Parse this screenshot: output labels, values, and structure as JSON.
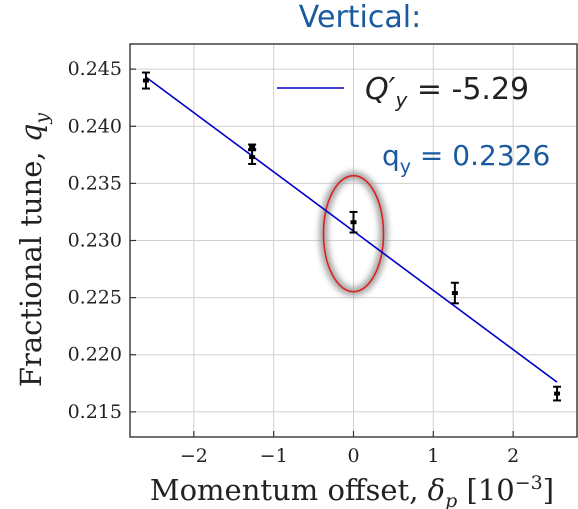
{
  "chart_data": {
    "type": "scatter",
    "title": "Vertical:",
    "xlabel_main": "Momentum offset, ",
    "xlabel_symbol": "δ",
    "xlabel_symbol_sub": "p",
    "xlabel_unit_open": " [10",
    "xlabel_unit_exp": "−3",
    "xlabel_unit_close": "]",
    "ylabel_main": "Fractional tune, ",
    "ylabel_symbol": "q",
    "ylabel_symbol_sub": "y",
    "xlim": [
      -2.8,
      2.8
    ],
    "ylim": [
      0.2128,
      0.2472
    ],
    "xticks": [
      -2,
      -1,
      0,
      1,
      2
    ],
    "xtick_labels": [
      "−2",
      "−1",
      "0",
      "1",
      "2"
    ],
    "yticks": [
      0.215,
      0.22,
      0.225,
      0.23,
      0.235,
      0.24,
      0.245
    ],
    "ytick_labels": [
      "0.215",
      "0.220",
      "0.225",
      "0.230",
      "0.235",
      "0.240",
      "0.245"
    ],
    "grid": true,
    "legend_position": "top-right",
    "series": [
      {
        "name": "Q′y = -5.29",
        "legend_main": "Q′",
        "legend_sub": "y",
        "legend_value": " =  -5.29",
        "kind": "line",
        "color": "#0000cc",
        "x": [
          -2.6,
          2.55
        ],
        "y": [
          0.2443,
          0.2176
        ]
      },
      {
        "kind": "errorbar",
        "color": "#000000",
        "points": [
          {
            "x": -2.6,
            "y": 0.244,
            "yerr": 0.0007
          },
          {
            "x": -1.27,
            "y": 0.2382,
            "yerr": 0.0002
          },
          {
            "x": -1.27,
            "y": 0.2373,
            "yerr": 0.0006
          },
          {
            "x": 0.0,
            "y": 0.2316,
            "yerr": 0.0009
          },
          {
            "x": 1.27,
            "y": 0.2254,
            "yerr": 0.0009
          },
          {
            "x": 2.55,
            "y": 0.2166,
            "yerr": 0.0006
          }
        ]
      }
    ],
    "annotations": {
      "tune_label_main": "q",
      "tune_label_sub": "y",
      "tune_label_value": " = 0.2326",
      "tune_label_color": "#1a5aa0",
      "highlight_ellipse_color": "#e02020",
      "highlight_center": {
        "x": 0.0,
        "y": 0.2306
      }
    },
    "title_color": "#1a5aa0"
  }
}
